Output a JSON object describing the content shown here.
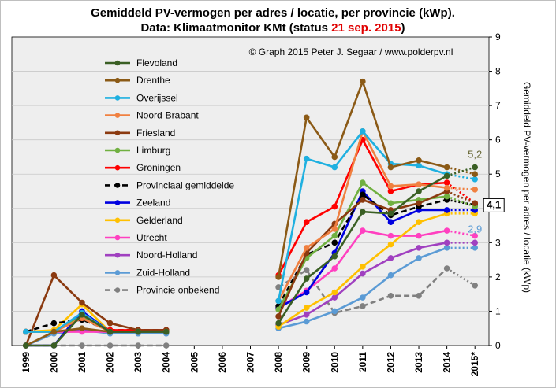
{
  "chart_data": {
    "type": "line",
    "title_line1": "Gemiddeld  PV-vermogen per adres / locatie,  per provincie  (kWp).",
    "title_line2_prefix": "Data: Klimaatmonitor KMt (status ",
    "title_line2_date": "21 sep. 2015",
    "title_line2_suffix": ")",
    "copyright": "© Graph  2015  Peter J. Segaar / www.polderpv.nl",
    "ylabel": "Gemiddeld  PV-vermogen  per adres / locatie (kWp)",
    "x": [
      "1999",
      "2000",
      "2001",
      "2002",
      "2003",
      "2004",
      "2005",
      "2006",
      "2007",
      "2008",
      "2009",
      "2010",
      "2011",
      "2012",
      "2013",
      "2014",
      "2015*"
    ],
    "ylim": [
      0,
      9
    ],
    "yticks": [
      "0",
      "1",
      "2",
      "3",
      "4",
      "5",
      "6",
      "7",
      "8",
      "9"
    ],
    "grid": "horizontal",
    "legend_position": "top-left",
    "annotations": [
      {
        "text": "5,2",
        "color": "#666633",
        "x": "2015*",
        "y": 5.2
      },
      {
        "text": "4,1",
        "color": "#000000",
        "x": "2015*",
        "y": 4.1,
        "boxed": true
      },
      {
        "text": "2,9",
        "color": "#5b9bd5",
        "x": "2015*",
        "y": 2.9
      }
    ],
    "series": [
      {
        "name": "Flevoland",
        "color": "#3a5f24",
        "style": "solid",
        "values": [
          0,
          0,
          0.9,
          0.4,
          0.4,
          0.4,
          null,
          null,
          null,
          0.65,
          1.95,
          2.6,
          3.9,
          3.85,
          4.5,
          4.95,
          5.2
        ]
      },
      {
        "name": "Drenthe",
        "color": "#8b5a16",
        "style": "solid",
        "values": [
          0,
          0.4,
          0.5,
          0.4,
          0.4,
          0.4,
          null,
          null,
          null,
          2.0,
          6.65,
          5.5,
          7.7,
          5.2,
          5.4,
          5.2,
          5.0
        ]
      },
      {
        "name": "Overijssel",
        "color": "#1fb0e0",
        "style": "solid",
        "values": [
          0.4,
          0.4,
          0.95,
          0.4,
          0.4,
          0.4,
          null,
          null,
          null,
          1.3,
          5.45,
          5.2,
          6.25,
          5.3,
          5.25,
          5.0,
          4.85
        ]
      },
      {
        "name": "Noord-Brabant",
        "color": "#f08040",
        "style": "solid",
        "values": [
          0.4,
          0.4,
          0.8,
          0.4,
          0.4,
          0.4,
          null,
          null,
          null,
          1.3,
          2.85,
          3.4,
          6.25,
          4.65,
          4.7,
          4.6,
          4.55
        ]
      },
      {
        "name": "Friesland",
        "color": "#8b3a10",
        "style": "solid",
        "values": [
          0,
          2.05,
          1.25,
          0.65,
          0.45,
          0.45,
          null,
          null,
          null,
          0.85,
          2.7,
          3.55,
          4.25,
          3.95,
          4.15,
          4.5,
          4.15
        ]
      },
      {
        "name": "Limburg",
        "color": "#70b040",
        "style": "solid",
        "values": [
          0.4,
          0.4,
          0.85,
          0.4,
          0.4,
          0.4,
          null,
          null,
          null,
          1.05,
          2.55,
          3.2,
          4.75,
          4.15,
          4.25,
          4.35,
          4.05
        ]
      },
      {
        "name": "Groningen",
        "color": "#ff0000",
        "style": "solid",
        "legend_text_color": "#e00000",
        "values": [
          0.4,
          0.4,
          0.8,
          0.45,
          0.45,
          0.45,
          null,
          null,
          null,
          2.05,
          3.6,
          4.05,
          6.0,
          4.5,
          4.7,
          4.75,
          4.15
        ]
      },
      {
        "name": "Provinciaal gemiddelde",
        "color": "#000000",
        "style": "dashed",
        "values": [
          0.4,
          0.65,
          0.75,
          0.45,
          0.45,
          0.45,
          null,
          null,
          null,
          1.15,
          2.65,
          3.0,
          4.4,
          3.8,
          4.05,
          4.25,
          4.1
        ]
      },
      {
        "name": "Zeeland",
        "color": "#0000e0",
        "style": "solid",
        "values": [
          0,
          0,
          1.0,
          0.4,
          0.4,
          0.4,
          null,
          null,
          null,
          1.1,
          1.55,
          2.7,
          4.5,
          3.6,
          3.95,
          3.95,
          3.95
        ]
      },
      {
        "name": "Gelderland",
        "color": "#ffc000",
        "style": "solid",
        "values": [
          0.4,
          0.45,
          1.2,
          0.4,
          0.4,
          0.4,
          null,
          null,
          null,
          0.55,
          1.1,
          1.55,
          2.3,
          2.95,
          3.6,
          3.85,
          3.85
        ]
      },
      {
        "name": "Utrecht",
        "color": "#ff40c0",
        "style": "solid",
        "values": [
          0.4,
          0.4,
          0.4,
          0.4,
          0.4,
          0.4,
          null,
          null,
          null,
          1.1,
          1.6,
          2.25,
          3.35,
          3.2,
          3.2,
          3.35,
          3.2
        ]
      },
      {
        "name": "Noord-Holland",
        "color": "#a040c0",
        "style": "solid",
        "values": [
          0.4,
          0.4,
          0.45,
          0.4,
          0.4,
          0.4,
          null,
          null,
          null,
          0.6,
          0.9,
          1.4,
          2.1,
          2.55,
          2.85,
          3.0,
          3.0
        ]
      },
      {
        "name": "Zuid-Holland",
        "color": "#5b9bd5",
        "style": "solid",
        "values": [
          0,
          0.35,
          0.45,
          0.35,
          0.35,
          0.35,
          null,
          null,
          null,
          0.5,
          0.7,
          1.0,
          1.4,
          2.05,
          2.55,
          2.85,
          2.85
        ]
      },
      {
        "name": "Provincie onbekend",
        "color": "#808080",
        "style": "dashed",
        "values": [
          0,
          0,
          0,
          0,
          0,
          0,
          null,
          null,
          null,
          1.7,
          2.2,
          0.95,
          1.15,
          1.45,
          1.45,
          2.25,
          1.75
        ]
      }
    ]
  }
}
